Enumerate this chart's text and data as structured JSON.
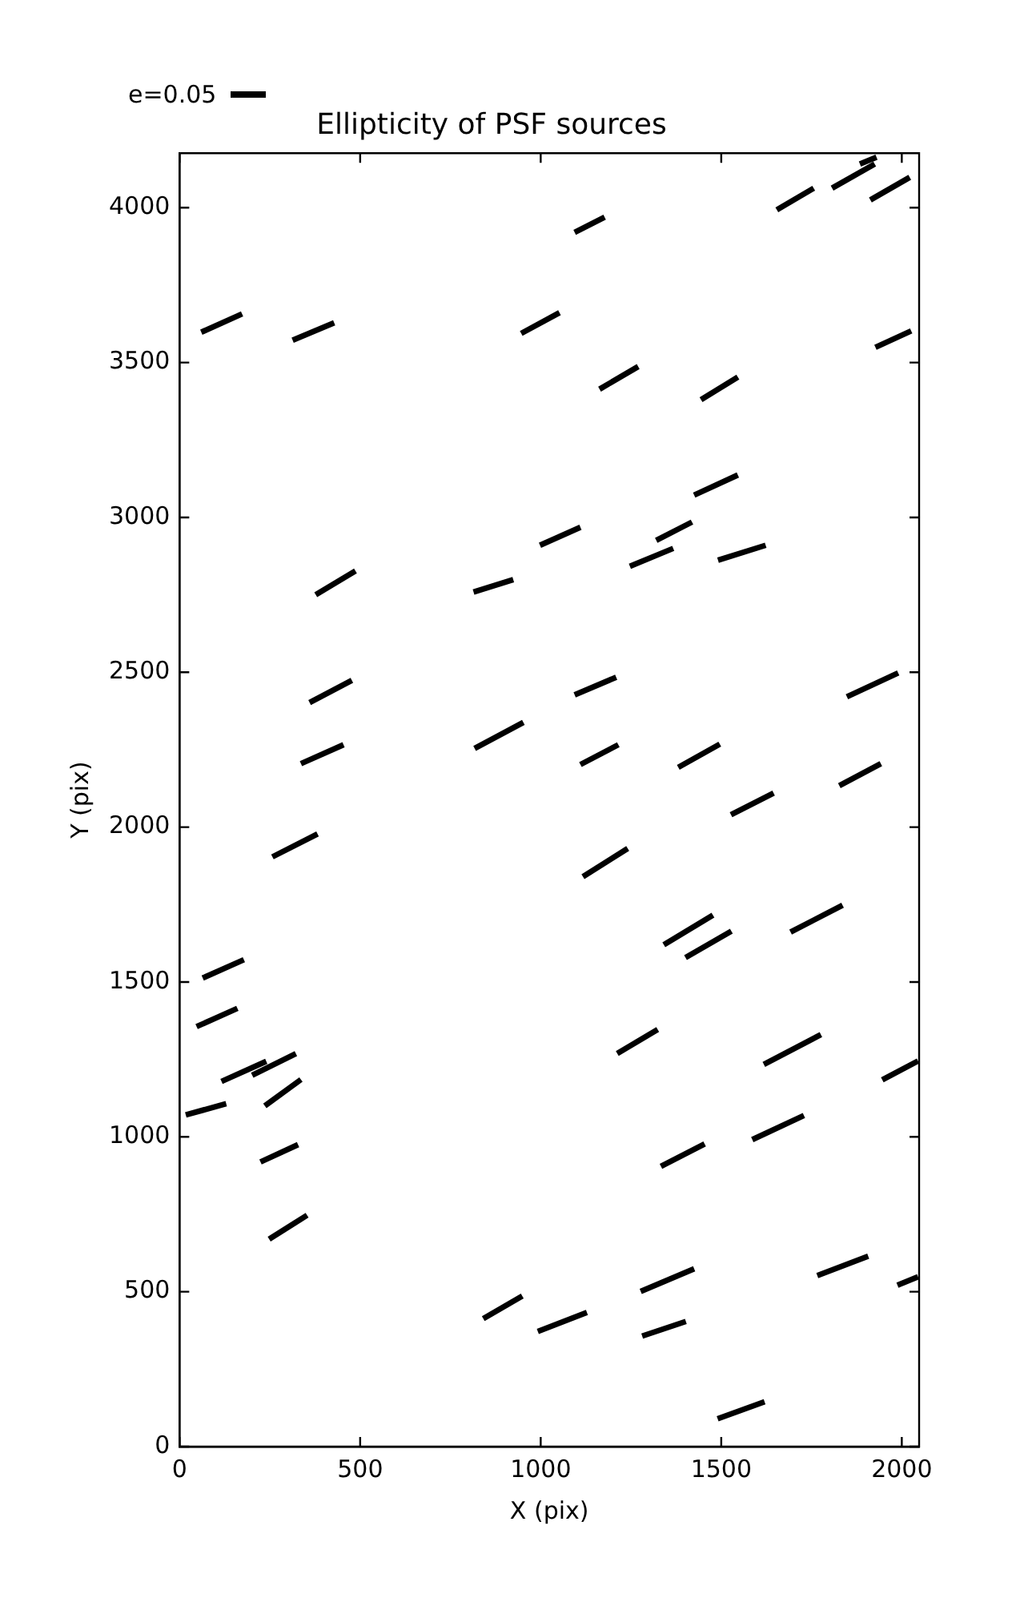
{
  "chart_data": {
    "type": "line",
    "title": "Ellipticity of PSF sources",
    "xlabel": "X (pix)",
    "ylabel": "Y (pix)",
    "annotations": [
      "e=0.05"
    ],
    "marker": "none",
    "line_style": "solid",
    "legend": false,
    "grid": false,
    "xlim": [
      0,
      2048
    ],
    "xticks": [
      0,
      500,
      1000,
      1500,
      2000
    ],
    "ylim": [
      0,
      4176
    ],
    "yticks": [
      0,
      500,
      1000,
      1500,
      2000,
      2500,
      3000,
      3500,
      4000
    ],
    "series": [
      {
        "type": "line",
        "color": "#000000",
        "x": [
          60,
          173
        ],
        "values": [
          3598,
          3657
        ]
      },
      {
        "type": "line",
        "color": "#000000",
        "x": [
          313,
          428
        ],
        "values": [
          3572,
          3628
        ]
      },
      {
        "type": "line",
        "color": "#000000",
        "x": [
          946,
          1052
        ],
        "values": [
          3594,
          3661
        ]
      },
      {
        "type": "line",
        "color": "#000000",
        "x": [
          377,
          487
        ],
        "values": [
          2750,
          2827
        ]
      },
      {
        "type": "line",
        "color": "#000000",
        "x": [
          814,
          924
        ],
        "values": [
          2759,
          2799
        ]
      },
      {
        "type": "line",
        "color": "#000000",
        "x": [
          998,
          1110
        ],
        "values": [
          2910,
          2968
        ]
      },
      {
        "type": "line",
        "color": "#000000",
        "x": [
          360,
          477
        ],
        "values": [
          2402,
          2474
        ]
      },
      {
        "type": "line",
        "color": "#000000",
        "x": [
          336,
          454
        ],
        "values": [
          2205,
          2266
        ]
      },
      {
        "type": "line",
        "color": "#000000",
        "x": [
          817,
          952
        ],
        "values": [
          2254,
          2338
        ]
      },
      {
        "type": "line",
        "color": "#000000",
        "x": [
          1094,
          1177
        ],
        "values": [
          3920,
          3969
        ]
      },
      {
        "type": "line",
        "color": "#000000",
        "x": [
          1654,
          1756
        ],
        "values": [
          3993,
          4063
        ]
      },
      {
        "type": "line",
        "color": "#000000",
        "x": [
          1807,
          1925
        ],
        "values": [
          4063,
          4141
        ]
      },
      {
        "type": "line",
        "color": "#000000",
        "x": [
          1884,
          1930
        ],
        "values": [
          4141,
          4163
        ]
      },
      {
        "type": "line",
        "color": "#000000",
        "x": [
          1913,
          2022
        ],
        "values": [
          4025,
          4098
        ]
      },
      {
        "type": "line",
        "color": "#000000",
        "x": [
          1927,
          2026
        ],
        "values": [
          3549,
          3602
        ]
      },
      {
        "type": "line",
        "color": "#000000",
        "x": [
          1163,
          1270
        ],
        "values": [
          3414,
          3487
        ]
      },
      {
        "type": "line",
        "color": "#000000",
        "x": [
          1444,
          1546
        ],
        "values": [
          3380,
          3453
        ]
      },
      {
        "type": "line",
        "color": "#000000",
        "x": [
          1425,
          1546
        ],
        "values": [
          3072,
          3137
        ]
      },
      {
        "type": "line",
        "color": "#000000",
        "x": [
          1320,
          1419
        ],
        "values": [
          2926,
          2985
        ]
      },
      {
        "type": "line",
        "color": "#000000",
        "x": [
          1247,
          1367
        ],
        "values": [
          2842,
          2900
        ]
      },
      {
        "type": "line",
        "color": "#000000",
        "x": [
          1491,
          1623
        ],
        "values": [
          2862,
          2910
        ]
      },
      {
        "type": "line",
        "color": "#000000",
        "x": [
          1094,
          1209
        ],
        "values": [
          2427,
          2484
        ]
      },
      {
        "type": "line",
        "color": "#000000",
        "x": [
          1848,
          1990
        ],
        "values": [
          2421,
          2498
        ]
      },
      {
        "type": "line",
        "color": "#000000",
        "x": [
          1110,
          1215
        ],
        "values": [
          2202,
          2266
        ]
      },
      {
        "type": "line",
        "color": "#000000",
        "x": [
          1381,
          1496
        ],
        "values": [
          2193,
          2268
        ]
      },
      {
        "type": "line",
        "color": "#000000",
        "x": [
          1827,
          1942
        ],
        "values": [
          2134,
          2205
        ]
      },
      {
        "type": "line",
        "color": "#000000",
        "x": [
          1527,
          1645
        ],
        "values": [
          2040,
          2110
        ]
      },
      {
        "type": "line",
        "color": "#000000",
        "x": [
          257,
          382
        ],
        "values": [
          1904,
          1978
        ]
      },
      {
        "type": "line",
        "color": "#000000",
        "x": [
          64,
          178
        ],
        "values": [
          1513,
          1572
        ]
      },
      {
        "type": "line",
        "color": "#000000",
        "x": [
          47,
          160
        ],
        "values": [
          1356,
          1415
        ]
      },
      {
        "type": "line",
        "color": "#000000",
        "x": [
          116,
          240
        ],
        "values": [
          1179,
          1244
        ]
      },
      {
        "type": "line",
        "color": "#000000",
        "x": [
          201,
          322
        ],
        "values": [
          1199,
          1269
        ]
      },
      {
        "type": "line",
        "color": "#000000",
        "x": [
          236,
          336
        ],
        "values": [
          1100,
          1185
        ]
      },
      {
        "type": "line",
        "color": "#000000",
        "x": [
          17,
          129
        ],
        "values": [
          1071,
          1107
        ]
      },
      {
        "type": "line",
        "color": "#000000",
        "x": [
          224,
          328
        ],
        "values": [
          919,
          975
        ]
      },
      {
        "type": "line",
        "color": "#000000",
        "x": [
          248,
          353
        ],
        "values": [
          670,
          747
        ]
      },
      {
        "type": "line",
        "color": "#000000",
        "x": [
          841,
          949
        ],
        "values": [
          413,
          486
        ]
      },
      {
        "type": "line",
        "color": "#000000",
        "x": [
          992,
          1128
        ],
        "values": [
          372,
          433
        ]
      },
      {
        "type": "line",
        "color": "#000000",
        "x": [
          1117,
          1241
        ],
        "values": [
          1840,
          1931
        ]
      },
      {
        "type": "line",
        "color": "#000000",
        "x": [
          1341,
          1477
        ],
        "values": [
          1620,
          1716
        ]
      },
      {
        "type": "line",
        "color": "#000000",
        "x": [
          1401,
          1528
        ],
        "values": [
          1579,
          1664
        ]
      },
      {
        "type": "line",
        "color": "#000000",
        "x": [
          1692,
          1836
        ],
        "values": [
          1661,
          1748
        ]
      },
      {
        "type": "line",
        "color": "#000000",
        "x": [
          1212,
          1324
        ],
        "values": [
          1269,
          1347
        ]
      },
      {
        "type": "line",
        "color": "#000000",
        "x": [
          1618,
          1776
        ],
        "values": [
          1234,
          1330
        ]
      },
      {
        "type": "line",
        "color": "#000000",
        "x": [
          1946,
          2045
        ],
        "values": [
          1184,
          1245
        ]
      },
      {
        "type": "line",
        "color": "#000000",
        "x": [
          1333,
          1454
        ],
        "values": [
          905,
          977
        ]
      },
      {
        "type": "line",
        "color": "#000000",
        "x": [
          1586,
          1729
        ],
        "values": [
          991,
          1069
        ]
      },
      {
        "type": "line",
        "color": "#000000",
        "x": [
          1277,
          1425
        ],
        "values": [
          501,
          574
        ]
      },
      {
        "type": "line",
        "color": "#000000",
        "x": [
          1766,
          1907
        ],
        "values": [
          552,
          615
        ]
      },
      {
        "type": "line",
        "color": "#000000",
        "x": [
          1988,
          2045
        ],
        "values": [
          521,
          548
        ]
      },
      {
        "type": "line",
        "color": "#000000",
        "x": [
          1281,
          1402
        ],
        "values": [
          357,
          404
        ]
      },
      {
        "type": "line",
        "color": "#000000",
        "x": [
          1490,
          1620
        ],
        "values": [
          90,
          145
        ]
      }
    ]
  }
}
